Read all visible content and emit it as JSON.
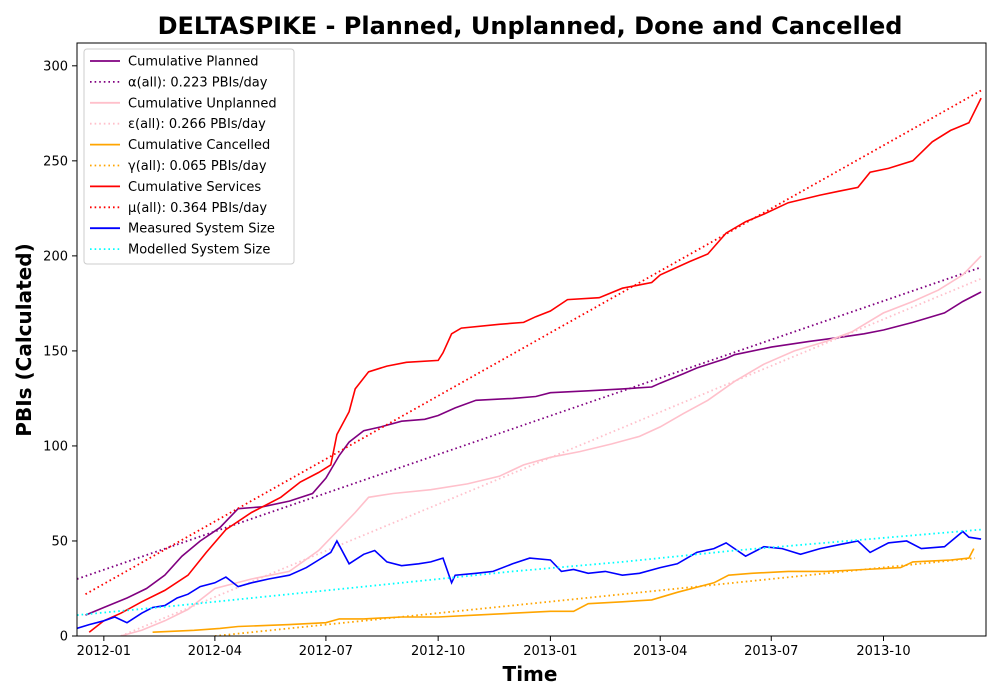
{
  "chart_data": {
    "type": "line",
    "title": "DELTASPIKE - Planned, Unplanned, Done  and Cancelled",
    "xlabel": "Time",
    "ylabel": "PBIs (Calculated)",
    "xlim": [
      "2011-12-10",
      "2013-12-24"
    ],
    "ylim": [
      0,
      312
    ],
    "x_ticks": [
      {
        "date": "2012-01-01",
        "label": "2012-01"
      },
      {
        "date": "2012-04-01",
        "label": "2012-04"
      },
      {
        "date": "2012-07-01",
        "label": "2012-07"
      },
      {
        "date": "2012-10-01",
        "label": "2012-10"
      },
      {
        "date": "2013-01-01",
        "label": "2013-01"
      },
      {
        "date": "2013-04-01",
        "label": "2013-04"
      },
      {
        "date": "2013-07-01",
        "label": "2013-07"
      },
      {
        "date": "2013-10-01",
        "label": "2013-10"
      }
    ],
    "y_ticks": [
      0,
      50,
      100,
      150,
      200,
      250,
      300
    ],
    "grid": false,
    "legend_position": "top-left",
    "series": [
      {
        "name": "Cumulative Planned",
        "color": "#800080",
        "style": "solid",
        "x": [
          "2011-12-17",
          "2012-01-01",
          "2012-01-20",
          "2012-02-05",
          "2012-02-20",
          "2012-03-05",
          "2012-03-20",
          "2012-04-05",
          "2012-04-20",
          "2012-05-10",
          "2012-06-01",
          "2012-06-20",
          "2012-07-01",
          "2012-07-12",
          "2012-07-20",
          "2012-08-01",
          "2012-08-15",
          "2012-09-01",
          "2012-09-20",
          "2012-10-01",
          "2012-10-15",
          "2012-11-01",
          "2012-12-01",
          "2012-12-20",
          "2013-01-01",
          "2013-02-01",
          "2013-03-01",
          "2013-03-25",
          "2013-04-01",
          "2013-04-20",
          "2013-05-01",
          "2013-05-25",
          "2013-06-01",
          "2013-07-01",
          "2013-08-01",
          "2013-08-25",
          "2013-09-15",
          "2013-10-01",
          "2013-10-25",
          "2013-11-20",
          "2013-12-05",
          "2013-12-20"
        ],
        "y": [
          11,
          15,
          20,
          25,
          32,
          42,
          50,
          57,
          67,
          68,
          71,
          75,
          83,
          95,
          102,
          108,
          110,
          113,
          114,
          116,
          120,
          124,
          125,
          126,
          128,
          129,
          130,
          131,
          133,
          138,
          141,
          146,
          148,
          152,
          155,
          157,
          159,
          161,
          165,
          170,
          176,
          181
        ]
      },
      {
        "name": "α(all): 0.223 PBIs/day",
        "color": "#800080",
        "style": "dotted",
        "x": [
          "2011-12-10",
          "2013-12-20"
        ],
        "y": [
          30,
          194
        ]
      },
      {
        "name": "Cumulative Unplanned",
        "color": "#ffc0cb",
        "style": "solid",
        "x": [
          "2012-01-15",
          "2012-02-01",
          "2012-02-20",
          "2012-03-10",
          "2012-04-01",
          "2012-05-01",
          "2012-06-01",
          "2012-06-25",
          "2012-07-10",
          "2012-07-25",
          "2012-08-05",
          "2012-08-25",
          "2012-09-25",
          "2012-10-25",
          "2012-11-20",
          "2012-12-10",
          "2013-01-01",
          "2013-01-25",
          "2013-02-20",
          "2013-03-15",
          "2013-04-01",
          "2013-04-20",
          "2013-05-10",
          "2013-06-01",
          "2013-06-25",
          "2013-07-20",
          "2013-08-15",
          "2013-09-05",
          "2013-10-01",
          "2013-10-25",
          "2013-11-15",
          "2013-12-05",
          "2013-12-20"
        ],
        "y": [
          0,
          3,
          8,
          14,
          25,
          30,
          34,
          45,
          55,
          65,
          73,
          75,
          77,
          80,
          84,
          90,
          94,
          97,
          101,
          105,
          110,
          117,
          124,
          134,
          143,
          150,
          155,
          160,
          170,
          176,
          182,
          190,
          200
        ]
      },
      {
        "name": "ε(all): 0.266 PBIs/day",
        "color": "#ffc0cb",
        "style": "dotted",
        "x": [
          "2012-01-15",
          "2013-12-20"
        ],
        "y": [
          0,
          188
        ]
      },
      {
        "name": "Cumulative Cancelled",
        "color": "#ffa500",
        "style": "solid",
        "x": [
          "2012-02-10",
          "2012-03-15",
          "2012-04-05",
          "2012-04-20",
          "2012-06-01",
          "2012-07-01",
          "2012-07-12",
          "2012-08-01",
          "2012-09-01",
          "2012-10-01",
          "2012-11-01",
          "2012-12-01",
          "2013-01-01",
          "2013-01-20",
          "2013-02-01",
          "2013-03-01",
          "2013-03-25",
          "2013-04-15",
          "2013-05-15",
          "2013-05-27",
          "2013-06-15",
          "2013-07-15",
          "2013-08-15",
          "2013-09-15",
          "2013-10-15",
          "2013-10-25",
          "2013-11-25",
          "2013-12-10",
          "2013-12-14"
        ],
        "y": [
          2,
          3,
          4,
          5,
          6,
          7,
          9,
          9,
          10,
          10,
          11,
          12,
          13,
          13,
          17,
          18,
          19,
          23,
          28,
          32,
          33,
          34,
          34,
          35,
          36,
          39,
          40,
          41,
          46
        ]
      },
      {
        "name": "γ(all): 0.065 PBIs/day",
        "color": "#ffa500",
        "style": "dotted",
        "x": [
          "2012-04-01",
          "2013-12-15"
        ],
        "y": [
          0,
          41
        ]
      },
      {
        "name": "Cumulative Services",
        "color": "#ff0000",
        "style": "solid",
        "x": [
          "2011-12-20",
          "2012-01-01",
          "2012-01-15",
          "2012-02-01",
          "2012-02-20",
          "2012-03-10",
          "2012-03-25",
          "2012-04-10",
          "2012-05-01",
          "2012-05-25",
          "2012-06-10",
          "2012-06-25",
          "2012-07-05",
          "2012-07-10",
          "2012-07-20",
          "2012-07-25",
          "2012-08-05",
          "2012-08-20",
          "2012-09-05",
          "2012-10-01",
          "2012-10-05",
          "2012-10-12",
          "2012-10-20",
          "2012-11-20",
          "2012-12-10",
          "2012-12-20",
          "2013-01-01",
          "2013-01-15",
          "2013-02-10",
          "2013-03-01",
          "2013-03-25",
          "2013-04-01",
          "2013-04-25",
          "2013-05-10",
          "2013-05-25",
          "2013-06-10",
          "2013-06-25",
          "2013-07-15",
          "2013-08-10",
          "2013-08-25",
          "2013-09-10",
          "2013-09-20",
          "2013-10-05",
          "2013-10-25",
          "2013-11-10",
          "2013-11-25",
          "2013-12-10",
          "2013-12-20"
        ],
        "y": [
          2,
          8,
          12,
          18,
          24,
          32,
          44,
          56,
          65,
          73,
          81,
          86,
          90,
          106,
          118,
          130,
          139,
          142,
          144,
          145,
          149,
          159,
          162,
          164,
          165,
          168,
          171,
          177,
          178,
          183,
          186,
          190,
          197,
          201,
          212,
          218,
          222,
          228,
          232,
          234,
          236,
          244,
          246,
          250,
          260,
          266,
          270,
          283
        ]
      },
      {
        "name": "μ(all): 0.364 PBIs/day",
        "color": "#ff0000",
        "style": "dotted",
        "x": [
          "2011-12-17",
          "2013-12-20"
        ],
        "y": [
          22,
          287
        ]
      },
      {
        "name": "Measured System Size",
        "color": "#0000ff",
        "style": "solid",
        "x": [
          "2011-12-10",
          "2011-12-20",
          "2012-01-01",
          "2012-01-10",
          "2012-01-20",
          "2012-02-01",
          "2012-02-10",
          "2012-02-20",
          "2012-03-01",
          "2012-03-10",
          "2012-03-20",
          "2012-04-01",
          "2012-04-10",
          "2012-04-20",
          "2012-05-01",
          "2012-05-15",
          "2012-06-01",
          "2012-06-15",
          "2012-06-25",
          "2012-07-05",
          "2012-07-10",
          "2012-07-20",
          "2012-08-01",
          "2012-08-10",
          "2012-08-20",
          "2012-09-01",
          "2012-09-15",
          "2012-09-25",
          "2012-10-05",
          "2012-10-12",
          "2012-10-15",
          "2012-11-01",
          "2012-11-15",
          "2012-12-01",
          "2012-12-15",
          "2013-01-01",
          "2013-01-10",
          "2013-01-20",
          "2013-02-01",
          "2013-02-15",
          "2013-03-01",
          "2013-03-15",
          "2013-04-01",
          "2013-04-15",
          "2013-05-01",
          "2013-05-15",
          "2013-05-25",
          "2013-06-10",
          "2013-06-25",
          "2013-07-10",
          "2013-07-25",
          "2013-08-10",
          "2013-08-25",
          "2013-09-10",
          "2013-09-20",
          "2013-10-05",
          "2013-10-20",
          "2013-11-01",
          "2013-11-20",
          "2013-12-05",
          "2013-12-10",
          "2013-12-20"
        ],
        "y": [
          4,
          6,
          8,
          10,
          7,
          12,
          15,
          16,
          20,
          22,
          26,
          28,
          31,
          26,
          28,
          30,
          32,
          36,
          40,
          44,
          50,
          38,
          43,
          45,
          39,
          37,
          38,
          39,
          41,
          28,
          32,
          33,
          34,
          38,
          41,
          40,
          34,
          35,
          33,
          34,
          32,
          33,
          36,
          38,
          44,
          46,
          49,
          42,
          47,
          46,
          43,
          46,
          48,
          50,
          44,
          49,
          50,
          46,
          47,
          55,
          52,
          51
        ]
      },
      {
        "name": "Modelled System Size",
        "color": "#00ffff",
        "style": "dotted",
        "x": [
          "2011-12-10",
          "2012-03-01",
          "2012-06-01",
          "2012-09-01",
          "2012-12-01",
          "2013-03-01",
          "2013-06-01",
          "2013-09-01",
          "2013-12-20"
        ],
        "y": [
          11,
          16,
          22,
          28,
          34,
          39,
          45,
          50,
          56
        ]
      }
    ]
  }
}
